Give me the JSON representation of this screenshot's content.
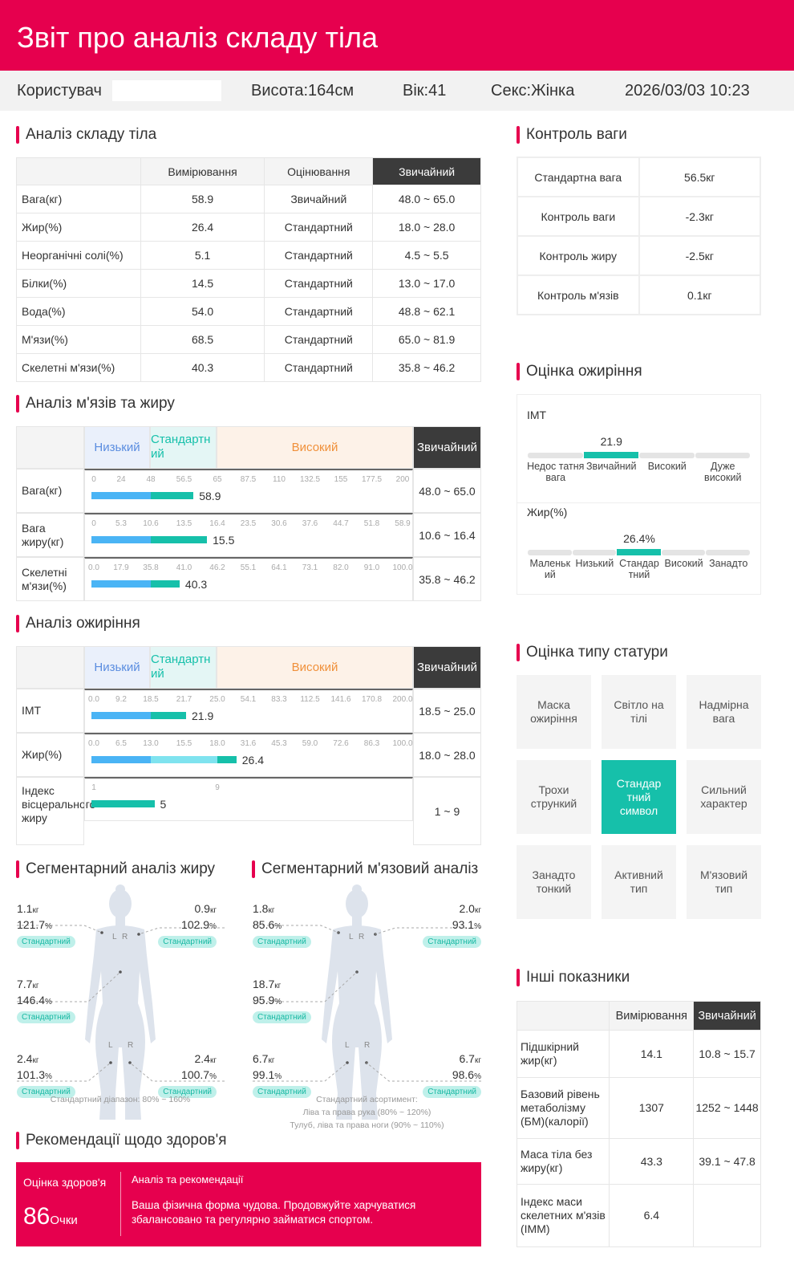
{
  "header": {
    "title": "Звіт про аналіз складу тіла"
  },
  "info": {
    "user_label": "Користувач",
    "height": "Висота:164см",
    "age": "Вік:41",
    "sex": "Секс:Жінка",
    "datetime": "2026/03/03 10:23"
  },
  "colors": {
    "accent": "#e6004e",
    "teal": "#16c0aa",
    "blue": "#4ab4f5",
    "light_cyan": "#7fe3ef",
    "dark": "#3b3b3b"
  },
  "composition": {
    "title": "Аналіз складу тіла",
    "headers": [
      "",
      "Вимірювання",
      "Оцінювання",
      "Звичайний"
    ],
    "rows": [
      [
        "Вага(кг)",
        "58.9",
        "Звичайний",
        "48.0 ~ 65.0"
      ],
      [
        "Жир(%)",
        "26.4",
        "Стандартний",
        "18.0 ~ 28.0"
      ],
      [
        "Неорганічні солі(%)",
        "5.1",
        "Стандартний",
        "4.5 ~ 5.5"
      ],
      [
        "Білки(%)",
        "14.5",
        "Стандартний",
        "13.0 ~ 17.0"
      ],
      [
        "Вода(%)",
        "54.0",
        "Стандартний",
        "48.8 ~ 62.1"
      ],
      [
        "М'язи(%)",
        "68.5",
        "Стандартний",
        "65.0 ~ 81.9"
      ],
      [
        "Скелетні м'язи(%)",
        "40.3",
        "Стандартний",
        "35.8 ~ 46.2"
      ]
    ]
  },
  "muscle_fat": {
    "title": "Аналіз м'язів та жиру",
    "low": "Низький",
    "std": "Стандартний",
    "high": "Високий",
    "normal": "Звичайний",
    "rows": [
      {
        "label": "Вага(кг)",
        "ticks": [
          "0",
          "24",
          "48",
          "56.5",
          "65",
          "87.5",
          "110",
          "132.5",
          "155",
          "177.5",
          "200"
        ],
        "value": 58.9,
        "value_label": "58.9",
        "normal": "48.0 ~ 65.0"
      },
      {
        "label": "Вага жиру(кг)",
        "ticks": [
          "0",
          "5.3",
          "10.6",
          "13.5",
          "16.4",
          "23.5",
          "30.6",
          "37.6",
          "44.7",
          "51.8",
          "58.9"
        ],
        "value": 15.5,
        "value_label": "15.5",
        "normal": "10.6 ~ 16.4"
      },
      {
        "label": "Скелетні м'язи(%)",
        "ticks": [
          "0.0",
          "17.9",
          "35.8",
          "41.0",
          "46.2",
          "55.1",
          "64.1",
          "73.1",
          "82.0",
          "91.0",
          "100.0"
        ],
        "value": 40.3,
        "value_label": "40.3",
        "normal": "35.8 ~ 46.2"
      }
    ]
  },
  "obesity": {
    "title": "Аналіз ожиріння",
    "low": "Низький",
    "std": "Стандартний",
    "high": "Високий",
    "normal": "Звичайний",
    "rows": [
      {
        "label": "IMT",
        "ticks": [
          "0.0",
          "9.2",
          "18.5",
          "21.7",
          "25.0",
          "54.1",
          "83.3",
          "112.5",
          "141.6",
          "170.8",
          "200.0"
        ],
        "value": 21.9,
        "value_label": "21.9",
        "normal": "18.5 ~ 25.0"
      },
      {
        "label": "Жир(%)",
        "ticks": [
          "0.0",
          "6.5",
          "13.0",
          "15.5",
          "18.0",
          "31.6",
          "45.3",
          "59.0",
          "72.6",
          "86.3",
          "100.0"
        ],
        "value": 26.4,
        "value_label": "26.4",
        "normal": "18.0 ~ 28.0"
      },
      {
        "label": "Індекс вісцерального жиру",
        "ticks": [
          "1",
          "9"
        ],
        "value": 5,
        "value_label": "5",
        "normal": "1 ~ 9"
      }
    ]
  },
  "seg_fat": {
    "title": "Сегментарний аналіз жиру",
    "note": "Стандартний діапазон: 80% ~ 160%",
    "parts": {
      "left_arm": {
        "kg": "1.1",
        "pct": "121.7",
        "status": "Стандартний"
      },
      "right_arm": {
        "kg": "0.9",
        "pct": "102.9",
        "status": "Стандартний"
      },
      "trunk": {
        "kg": "7.7",
        "pct": "146.4",
        "status": "Стандартний"
      },
      "left_leg": {
        "kg": "2.4",
        "pct": "101.3",
        "status": "Стандартний"
      },
      "right_leg": {
        "kg": "2.4",
        "pct": "100.7",
        "status": "Стандартний"
      }
    }
  },
  "seg_muscle": {
    "title": "Сегментарний м'язовий аналіз",
    "note": [
      "Стандартний асортимент:",
      "Ліва та права рука (80% ~ 120%)",
      "Тулуб, ліва та права ноги (90% ~ 110%)"
    ],
    "parts": {
      "left_arm": {
        "kg": "1.8",
        "pct": "85.6",
        "status": "Стандартний"
      },
      "right_arm": {
        "kg": "2.0",
        "pct": "93.1",
        "status": "Стандартний"
      },
      "trunk": {
        "kg": "18.7",
        "pct": "95.9",
        "status": "Стандартний"
      },
      "left_leg": {
        "kg": "6.7",
        "pct": "99.1",
        "status": "Стандартний"
      },
      "right_leg": {
        "kg": "6.7",
        "pct": "98.6",
        "status": "Стандартний"
      }
    }
  },
  "units": {
    "kg": "кг",
    "pct": "%",
    "L": "L",
    "R": "R"
  },
  "weight_control": {
    "title": "Контроль ваги",
    "rows": [
      [
        "Стандартна вага",
        "56.5кг"
      ],
      [
        "Контроль ваги",
        "-2.3кг"
      ],
      [
        "Контроль жиру",
        "-2.5кг"
      ],
      [
        "Контроль м'язів",
        "0.1кг"
      ]
    ]
  },
  "obesity_eval": {
    "title": "Оцінка ожиріння",
    "imt": {
      "label": "IMT",
      "value": "21.9",
      "categories": [
        "Недос татня вага",
        "Звичайний",
        "Високий",
        "Дуже високий"
      ],
      "active_index": 1
    },
    "fat": {
      "label": "Жир(%)",
      "value": "26.4%",
      "categories": [
        "Маленьк ий",
        "Низький",
        "Стандар тний",
        "Високий",
        "Занадто"
      ],
      "active_index": 2
    }
  },
  "body_type": {
    "title": "Оцінка типу статури",
    "cells": [
      "Маска ожиріння",
      "Світло на тілі",
      "Надмірна вага",
      "Трохи стрункий",
      "Стандар тний символ",
      "Сильний характер",
      "Занадто тонкий",
      "Активний тип",
      "М'язовий тип"
    ],
    "active_index": 4
  },
  "other": {
    "title": "Інші показники",
    "headers": [
      "",
      "Вимірювання",
      "Звичайний"
    ],
    "rows": [
      [
        "Підшкірний жир(кг)",
        "14.1",
        "10.8 ~ 15.7"
      ],
      [
        "Базовий рівень метаболізму (БМ)(калорії)",
        "1307",
        "1252 ~ 1448"
      ],
      [
        "Маса тіла без жиру(кг)",
        "43.3",
        "39.1 ~ 47.8"
      ],
      [
        "Індекс маси скелетних м'язів (IMM)",
        "6.4",
        ""
      ]
    ]
  },
  "health": {
    "title": "Рекомендації щодо здоров'я",
    "score_label": "Оцінка здоров'я",
    "score": "86",
    "score_unit": "Очки",
    "analysis_title": "Аналіз та рекомендації",
    "analysis_text": "Ваша фізична форма чудова. Продовжуйте харчуватися збалансовано та регулярно займатися спортом."
  }
}
